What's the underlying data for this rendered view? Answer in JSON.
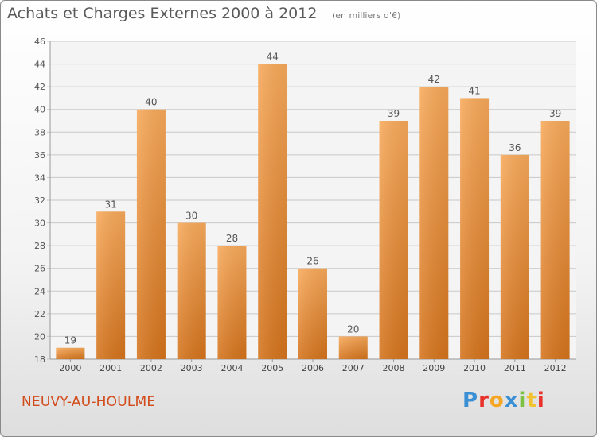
{
  "title": "Achats et Charges Externes 2000 à 2012",
  "subtitle": "(en milliers d'€)",
  "commune": "NEUVY-AU-HOULME",
  "logo_text": "Proxiti",
  "colors": {
    "bar_light": "#f7a95a",
    "bar_dark": "#d4731c",
    "grid": "#c8c8c8",
    "commune_text": "#d24b1a"
  },
  "chart_data": {
    "type": "bar",
    "categories": [
      "2000",
      "2001",
      "2002",
      "2003",
      "2004",
      "2005",
      "2006",
      "2007",
      "2008",
      "2009",
      "2010",
      "2011",
      "2012"
    ],
    "values": [
      19,
      31,
      40,
      30,
      28,
      44,
      26,
      20,
      39,
      42,
      41,
      36,
      39
    ],
    "ylim": [
      18,
      46
    ],
    "yticks": [
      18,
      20,
      22,
      24,
      26,
      28,
      30,
      32,
      34,
      36,
      38,
      40,
      42,
      44,
      46
    ],
    "grid": true
  }
}
